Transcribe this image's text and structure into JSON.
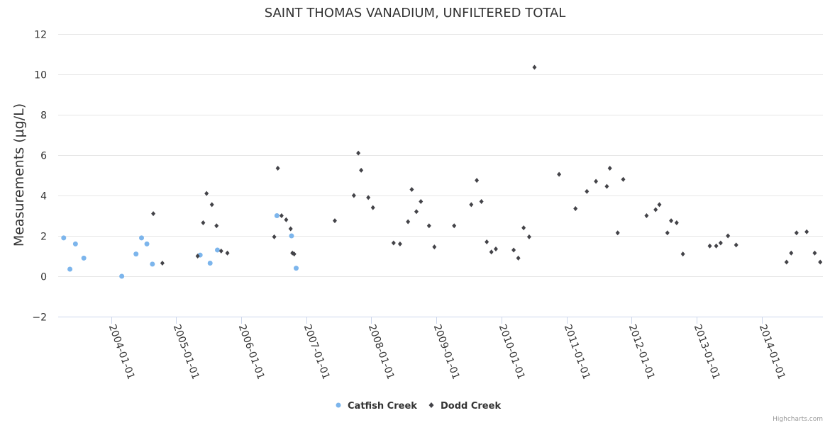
{
  "chart_data": {
    "type": "scatter",
    "title": "SAINT THOMAS VANADIUM, UNFILTERED TOTAL",
    "xlabel": "",
    "ylabel": "Measurements (µg/L)",
    "ylim": [
      -2,
      12
    ],
    "yticks": [
      -2,
      0,
      2,
      4,
      6,
      8,
      10,
      12
    ],
    "xlim": [
      "2003-03-10",
      "2014-12-10"
    ],
    "xticks": [
      "2004-01-01",
      "2005-01-01",
      "2006-01-01",
      "2007-01-01",
      "2008-01-01",
      "2009-01-01",
      "2010-01-01",
      "2011-01-01",
      "2012-01-01",
      "2013-01-01",
      "2014-01-01"
    ],
    "grid": true,
    "legend": "bottom-center",
    "credits": "Highcharts.com",
    "series": [
      {
        "name": "Catfish Creek",
        "color": "#7cb5ec",
        "marker": "circle",
        "points": [
          [
            "2003-04-10",
            1.9
          ],
          [
            "2003-05-15",
            0.35
          ],
          [
            "2003-06-15",
            1.6
          ],
          [
            "2003-08-01",
            0.9
          ],
          [
            "2004-03-01",
            0.0
          ],
          [
            "2004-05-20",
            1.1
          ],
          [
            "2004-06-20",
            1.9
          ],
          [
            "2004-07-20",
            1.6
          ],
          [
            "2004-08-20",
            0.6
          ],
          [
            "2005-05-15",
            1.05
          ],
          [
            "2005-07-10",
            0.65
          ],
          [
            "2005-08-20",
            1.3
          ],
          [
            "2006-07-20",
            3.0
          ],
          [
            "2006-10-10",
            2.0
          ],
          [
            "2006-11-05",
            0.4
          ]
        ]
      },
      {
        "name": "Dodd Creek",
        "color": "#434348",
        "marker": "diamond",
        "points": [
          [
            "2004-08-25",
            3.1
          ],
          [
            "2004-10-15",
            0.65
          ],
          [
            "2005-05-01",
            1.0
          ],
          [
            "2005-06-01",
            2.65
          ],
          [
            "2005-06-20",
            4.1
          ],
          [
            "2005-07-20",
            3.55
          ],
          [
            "2005-08-15",
            2.5
          ],
          [
            "2005-09-10",
            1.25
          ],
          [
            "2005-10-15",
            1.15
          ],
          [
            "2006-07-05",
            1.95
          ],
          [
            "2006-07-25",
            5.35
          ],
          [
            "2006-08-15",
            3.0
          ],
          [
            "2006-09-10",
            2.8
          ],
          [
            "2006-10-05",
            2.35
          ],
          [
            "2006-10-15",
            1.15
          ],
          [
            "2006-10-25",
            1.1
          ],
          [
            "2007-06-10",
            2.75
          ],
          [
            "2007-09-25",
            4.0
          ],
          [
            "2007-10-20",
            6.1
          ],
          [
            "2007-11-05",
            5.25
          ],
          [
            "2007-12-15",
            3.9
          ],
          [
            "2008-01-10",
            3.4
          ],
          [
            "2008-05-05",
            1.65
          ],
          [
            "2008-06-10",
            1.6
          ],
          [
            "2008-07-25",
            2.7
          ],
          [
            "2008-08-15",
            4.3
          ],
          [
            "2008-09-10",
            3.2
          ],
          [
            "2008-10-05",
            3.7
          ],
          [
            "2008-11-20",
            2.5
          ],
          [
            "2008-12-20",
            1.45
          ],
          [
            "2009-04-10",
            2.5
          ],
          [
            "2009-07-15",
            3.55
          ],
          [
            "2009-08-15",
            4.75
          ],
          [
            "2009-09-10",
            3.7
          ],
          [
            "2009-10-10",
            1.7
          ],
          [
            "2009-11-05",
            1.2
          ],
          [
            "2009-11-30",
            1.35
          ],
          [
            "2010-03-10",
            1.3
          ],
          [
            "2010-04-05",
            0.9
          ],
          [
            "2010-05-05",
            2.4
          ],
          [
            "2010-06-05",
            1.95
          ],
          [
            "2010-07-05",
            10.35
          ],
          [
            "2010-11-20",
            5.05
          ],
          [
            "2011-02-20",
            3.35
          ],
          [
            "2011-04-25",
            4.2
          ],
          [
            "2011-06-15",
            4.7
          ],
          [
            "2011-08-15",
            4.45
          ],
          [
            "2011-09-01",
            5.35
          ],
          [
            "2011-10-15",
            2.15
          ],
          [
            "2011-11-15",
            4.8
          ],
          [
            "2012-03-25",
            3.0
          ],
          [
            "2012-05-15",
            3.3
          ],
          [
            "2012-06-05",
            3.55
          ],
          [
            "2012-07-20",
            2.15
          ],
          [
            "2012-08-10",
            2.75
          ],
          [
            "2012-09-10",
            2.65
          ],
          [
            "2012-10-15",
            1.1
          ],
          [
            "2013-03-15",
            1.5
          ],
          [
            "2013-04-20",
            1.5
          ],
          [
            "2013-05-15",
            1.65
          ],
          [
            "2013-06-25",
            2.0
          ],
          [
            "2013-08-10",
            1.55
          ],
          [
            "2014-05-20",
            0.7
          ],
          [
            "2014-06-15",
            1.15
          ],
          [
            "2014-07-15",
            2.15
          ],
          [
            "2014-09-10",
            2.2
          ],
          [
            "2014-10-25",
            1.15
          ],
          [
            "2014-11-25",
            0.7
          ]
        ]
      }
    ]
  }
}
